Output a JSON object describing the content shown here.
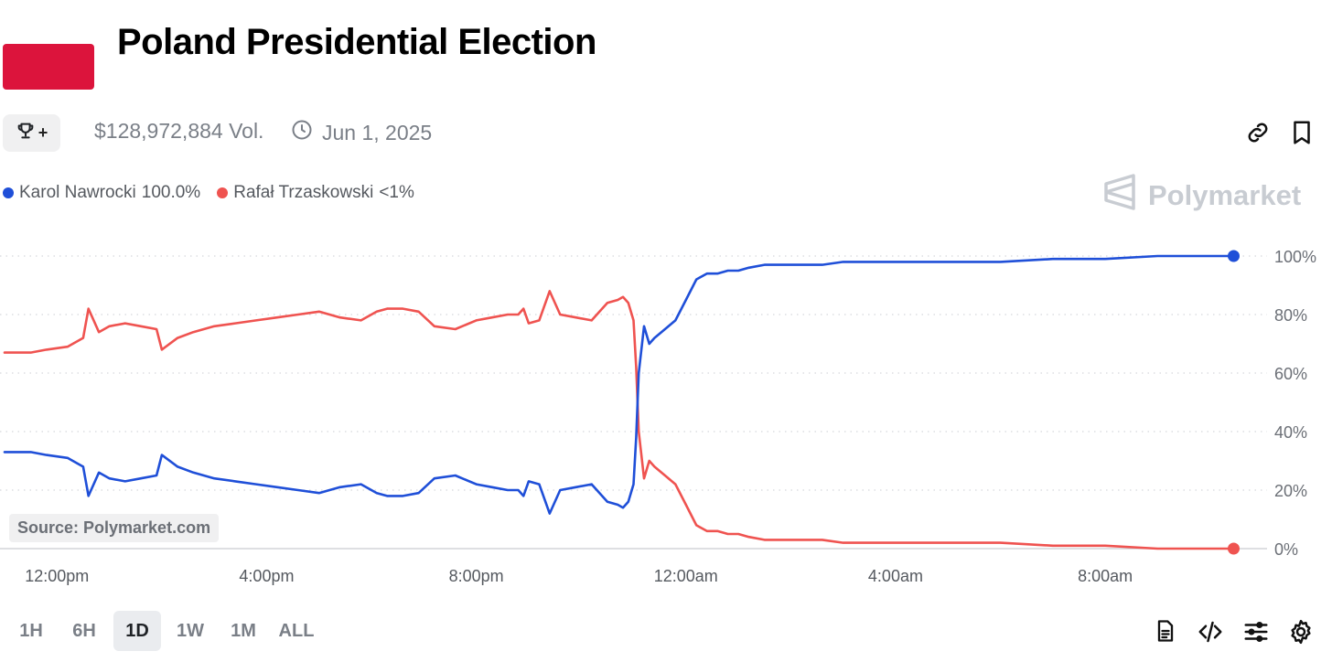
{
  "title": "Poland Presidential Election",
  "volume": "$128,972,884 Vol.",
  "date": "Jun 1, 2025",
  "brand": "Polymarket",
  "source": "Source: Polymarket.com",
  "legend": [
    {
      "name": "Karol Nawrocki",
      "value": "100.0%",
      "color": "#1f4fd8"
    },
    {
      "name": "Rafał Trzaskowski",
      "value": "<1%",
      "color": "#ef5350"
    }
  ],
  "ranges": [
    "1H",
    "6H",
    "1D",
    "1W",
    "1M",
    "ALL"
  ],
  "active_range": "1D",
  "icons": {
    "trophy": "trophy-icon",
    "link": "link-icon",
    "bookmark": "bookmark-icon",
    "document": "document-icon",
    "embed": "code-icon",
    "settings_sliders": "sliders-icon",
    "settings": "gear-icon"
  },
  "chart_data": {
    "type": "line",
    "title": "Poland Presidential Election",
    "xlabel": "",
    "ylabel": "",
    "x_ticks": [
      "12:00pm",
      "4:00pm",
      "8:00pm",
      "12:00am",
      "4:00am",
      "8:00am"
    ],
    "x_tick_hours": [
      1,
      5,
      9,
      13,
      17,
      21
    ],
    "x_range_hours": [
      0,
      24
    ],
    "y_ticks": [
      "0%",
      "20%",
      "40%",
      "60%",
      "80%",
      "100%"
    ],
    "y_tick_values": [
      0,
      20,
      40,
      60,
      80,
      100
    ],
    "ylim": [
      0,
      100
    ],
    "grid": "horizontal-dotted",
    "series": [
      {
        "name": "Karol Nawrocki",
        "color": "#1f4fd8",
        "x": [
          0.0,
          0.2,
          0.5,
          0.8,
          1.2,
          1.5,
          1.6,
          1.8,
          2.0,
          2.3,
          2.6,
          2.9,
          3.0,
          3.3,
          3.6,
          4.0,
          4.4,
          4.8,
          5.2,
          5.6,
          6.0,
          6.4,
          6.8,
          7.1,
          7.3,
          7.6,
          7.9,
          8.2,
          8.6,
          9.0,
          9.3,
          9.6,
          9.8,
          9.9,
          10.0,
          10.2,
          10.4,
          10.6,
          10.9,
          11.2,
          11.5,
          11.7,
          11.8,
          11.9,
          12.0,
          12.05,
          12.1,
          12.2,
          12.3,
          12.4,
          12.6,
          12.8,
          13.0,
          13.2,
          13.4,
          13.6,
          13.8,
          14.0,
          14.2,
          14.5,
          14.8,
          15.2,
          15.6,
          16.0,
          16.5,
          17.0,
          17.5,
          18.0,
          19.0,
          20.0,
          20.5,
          21.0,
          22.0,
          23.0,
          23.45
        ],
        "values": [
          33,
          33,
          33,
          32,
          31,
          28,
          18,
          26,
          24,
          23,
          24,
          25,
          32,
          28,
          26,
          24,
          23,
          22,
          21,
          20,
          19,
          21,
          22,
          19,
          18,
          18,
          19,
          24,
          25,
          22,
          21,
          20,
          20,
          18,
          23,
          22,
          12,
          20,
          21,
          22,
          16,
          15,
          14,
          16,
          22,
          38,
          60,
          76,
          70,
          72,
          75,
          78,
          85,
          92,
          94,
          94,
          95,
          95,
          96,
          97,
          97,
          97,
          97,
          98,
          98,
          98,
          98,
          98,
          98,
          99,
          99,
          99,
          100,
          100,
          100
        ]
      },
      {
        "name": "Rafał Trzaskowski",
        "color": "#ef5350",
        "x": [
          0.0,
          0.2,
          0.5,
          0.8,
          1.2,
          1.5,
          1.6,
          1.8,
          2.0,
          2.3,
          2.6,
          2.9,
          3.0,
          3.3,
          3.6,
          4.0,
          4.4,
          4.8,
          5.2,
          5.6,
          6.0,
          6.4,
          6.8,
          7.1,
          7.3,
          7.6,
          7.9,
          8.2,
          8.6,
          9.0,
          9.3,
          9.6,
          9.8,
          9.9,
          10.0,
          10.2,
          10.4,
          10.6,
          10.9,
          11.2,
          11.5,
          11.7,
          11.8,
          11.9,
          12.0,
          12.05,
          12.1,
          12.2,
          12.3,
          12.4,
          12.6,
          12.8,
          13.0,
          13.2,
          13.4,
          13.6,
          13.8,
          14.0,
          14.2,
          14.5,
          14.8,
          15.2,
          15.6,
          16.0,
          16.5,
          17.0,
          17.5,
          18.0,
          19.0,
          20.0,
          20.5,
          21.0,
          22.0,
          23.0,
          23.45
        ],
        "values": [
          67,
          67,
          67,
          68,
          69,
          72,
          82,
          74,
          76,
          77,
          76,
          75,
          68,
          72,
          74,
          76,
          77,
          78,
          79,
          80,
          81,
          79,
          78,
          81,
          82,
          82,
          81,
          76,
          75,
          78,
          79,
          80,
          80,
          82,
          77,
          78,
          88,
          80,
          79,
          78,
          84,
          85,
          86,
          84,
          78,
          62,
          40,
          24,
          30,
          28,
          25,
          22,
          15,
          8,
          6,
          6,
          5,
          5,
          4,
          3,
          3,
          3,
          3,
          2,
          2,
          2,
          2,
          2,
          2,
          1,
          1,
          1,
          0,
          0,
          0
        ]
      }
    ]
  }
}
